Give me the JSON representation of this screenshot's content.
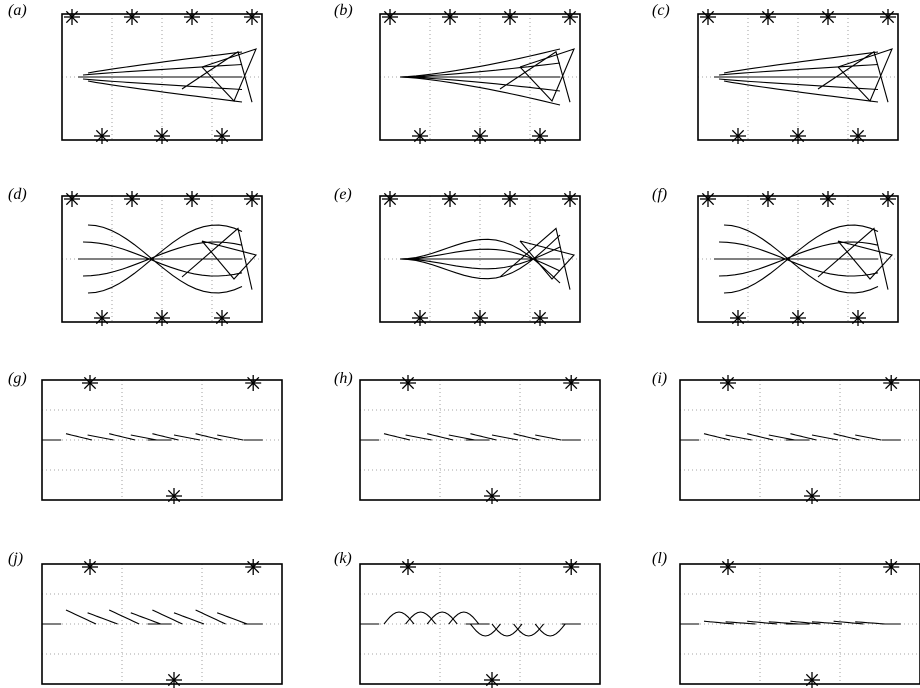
{
  "figure": {
    "panels": [
      {
        "label": "(a)"
      },
      {
        "label": "(b)"
      },
      {
        "label": "(c)"
      },
      {
        "label": "(d)"
      },
      {
        "label": "(e)"
      },
      {
        "label": "(f)"
      },
      {
        "label": "(g)"
      },
      {
        "label": "(h)"
      },
      {
        "label": "(i)"
      },
      {
        "label": "(j)"
      },
      {
        "label": "(k)"
      },
      {
        "label": "(l)"
      }
    ]
  },
  "chart_data": {
    "type": "line",
    "grid": true,
    "line_color": "#000000",
    "grid_color": "#888888"
  }
}
